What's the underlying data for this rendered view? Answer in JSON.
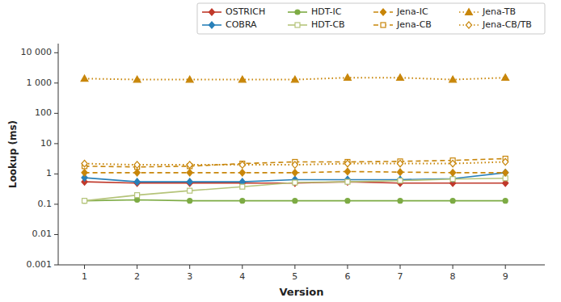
{
  "chart_data": {
    "type": "line",
    "x": [
      1,
      2,
      3,
      4,
      5,
      6,
      7,
      8,
      9
    ],
    "xlabel": "Version",
    "ylabel": "Lookup (ms)",
    "xlim": [
      0.5,
      9.75
    ],
    "xticks": [
      1,
      2,
      3,
      4,
      5,
      6,
      7,
      8,
      9
    ],
    "ylim": [
      0.001,
      20000
    ],
    "yticks": [
      0.001,
      0.01,
      0.1,
      1,
      10,
      100,
      {
        "value": 1000,
        "label": "1 000"
      },
      {
        "value": 10000,
        "label": "10 000"
      }
    ],
    "log": "y",
    "grid": false,
    "legend": "upper right",
    "series": [
      {
        "name": "OSTRICH",
        "color": "#c0392b",
        "marker": "diamond",
        "line_style": "solid",
        "values": [
          0.55,
          0.5,
          0.5,
          0.5,
          0.5,
          0.55,
          0.5,
          0.5,
          0.5
        ]
      },
      {
        "name": "COBRA",
        "color": "#2980b9",
        "marker": "diamond",
        "line_style": "solid",
        "values": [
          0.75,
          0.55,
          0.55,
          0.55,
          0.65,
          0.65,
          0.65,
          0.7,
          1.1
        ]
      },
      {
        "name": "HDT-IC",
        "color": "#7dab44",
        "marker": "circle",
        "line_style": "solid",
        "values": [
          0.13,
          0.14,
          0.13,
          0.13,
          0.13,
          0.13,
          0.13,
          0.13,
          0.13
        ]
      },
      {
        "name": "HDT-CB",
        "color": "#b5c47a",
        "marker": "square-open",
        "line_style": "solid",
        "values": [
          0.13,
          0.2,
          0.28,
          0.38,
          0.52,
          0.55,
          0.6,
          0.68,
          0.72
        ]
      },
      {
        "name": "Jena-IC",
        "color": "#c8860a",
        "marker": "diamond",
        "line_style": "dashed",
        "values": [
          1.1,
          1.1,
          1.1,
          1.1,
          1.1,
          1.2,
          1.15,
          1.1,
          1.1
        ]
      },
      {
        "name": "Jena-CB",
        "color": "#c8860a",
        "marker": "square-open",
        "line_style": "dashed",
        "values": [
          1.8,
          1.7,
          1.8,
          2.2,
          2.5,
          2.5,
          2.6,
          2.8,
          3.2
        ]
      },
      {
        "name": "Jena-TB",
        "color": "#c8860a",
        "marker": "triangle",
        "line_style": "dotted",
        "values": [
          1400,
          1300,
          1300,
          1300,
          1300,
          1500,
          1500,
          1300,
          1500
        ]
      },
      {
        "name": "Jena-CB/TB",
        "color": "#c8860a",
        "marker": "diamond-open",
        "line_style": "dotted",
        "values": [
          2.2,
          2.0,
          2.0,
          2.0,
          2.0,
          2.2,
          2.2,
          2.2,
          2.5
        ]
      }
    ]
  }
}
